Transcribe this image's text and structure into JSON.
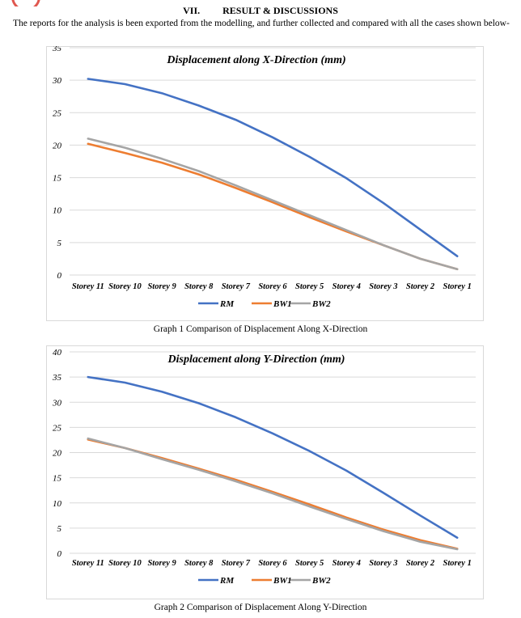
{
  "section": {
    "number": "VII.",
    "title": "RESULT & DISCUSSIONS"
  },
  "intro_text": "The reports for the analysis is been exported from the modelling, and further collected and compared with all the cases shown below-",
  "captions": [
    "Graph 1 Comparison of Displacement Along X-Direction",
    "Graph 2 Comparison of Displacement Along Y-Direction"
  ],
  "colors": {
    "RM": "#4472c4",
    "BW1": "#ed7d31",
    "BW2": "#a5a5a5",
    "grid": "#d9d9d9"
  },
  "chart_data": [
    {
      "type": "line",
      "title": "Displacement along X-Direction (mm)",
      "categories": [
        "Storey 11",
        "Storey 10",
        "Storey 9",
        "Storey 8",
        "Storey 7",
        "Storey 6",
        "Storey 5",
        "Storey 4",
        "Storey 3",
        "Storey 2",
        "Storey 1"
      ],
      "series": [
        {
          "name": "RM",
          "values": [
            30.2,
            29.4,
            28.0,
            26.1,
            23.9,
            21.2,
            18.2,
            14.9,
            11.1,
            7.0,
            2.9
          ]
        },
        {
          "name": "BW1",
          "values": [
            20.2,
            18.8,
            17.3,
            15.5,
            13.4,
            11.2,
            8.9,
            6.7,
            4.6,
            2.5,
            0.9
          ]
        },
        {
          "name": "BW2",
          "values": [
            21.0,
            19.6,
            17.9,
            16.0,
            13.8,
            11.5,
            9.2,
            6.9,
            4.6,
            2.5,
            0.9
          ]
        }
      ],
      "ylim": [
        0,
        35
      ],
      "yticks": [
        0,
        5,
        10,
        15,
        20,
        25,
        30,
        35
      ],
      "grid": true,
      "legend": "bottom"
    },
    {
      "type": "line",
      "title": "Displacement along Y-Direction (mm)",
      "categories": [
        "Storey 11",
        "Storey 10",
        "Storey 9",
        "Storey 8",
        "Storey 7",
        "Storey 6",
        "Storey 5",
        "Storey 4",
        "Storey 3",
        "Storey 2",
        "Storey 1"
      ],
      "series": [
        {
          "name": "RM",
          "values": [
            35.0,
            33.9,
            32.1,
            29.8,
            27.0,
            23.8,
            20.3,
            16.4,
            12.0,
            7.5,
            3.1
          ]
        },
        {
          "name": "BW1",
          "values": [
            22.6,
            20.9,
            18.9,
            16.8,
            14.6,
            12.2,
            9.7,
            7.1,
            4.7,
            2.6,
            0.9
          ]
        },
        {
          "name": "BW2",
          "values": [
            22.8,
            20.9,
            18.7,
            16.6,
            14.3,
            11.9,
            9.3,
            6.8,
            4.4,
            2.3,
            0.8
          ]
        }
      ],
      "ylim": [
        0,
        40
      ],
      "yticks": [
        0,
        5,
        10,
        15,
        20,
        25,
        30,
        35,
        40
      ],
      "grid": true,
      "legend": "bottom"
    }
  ]
}
